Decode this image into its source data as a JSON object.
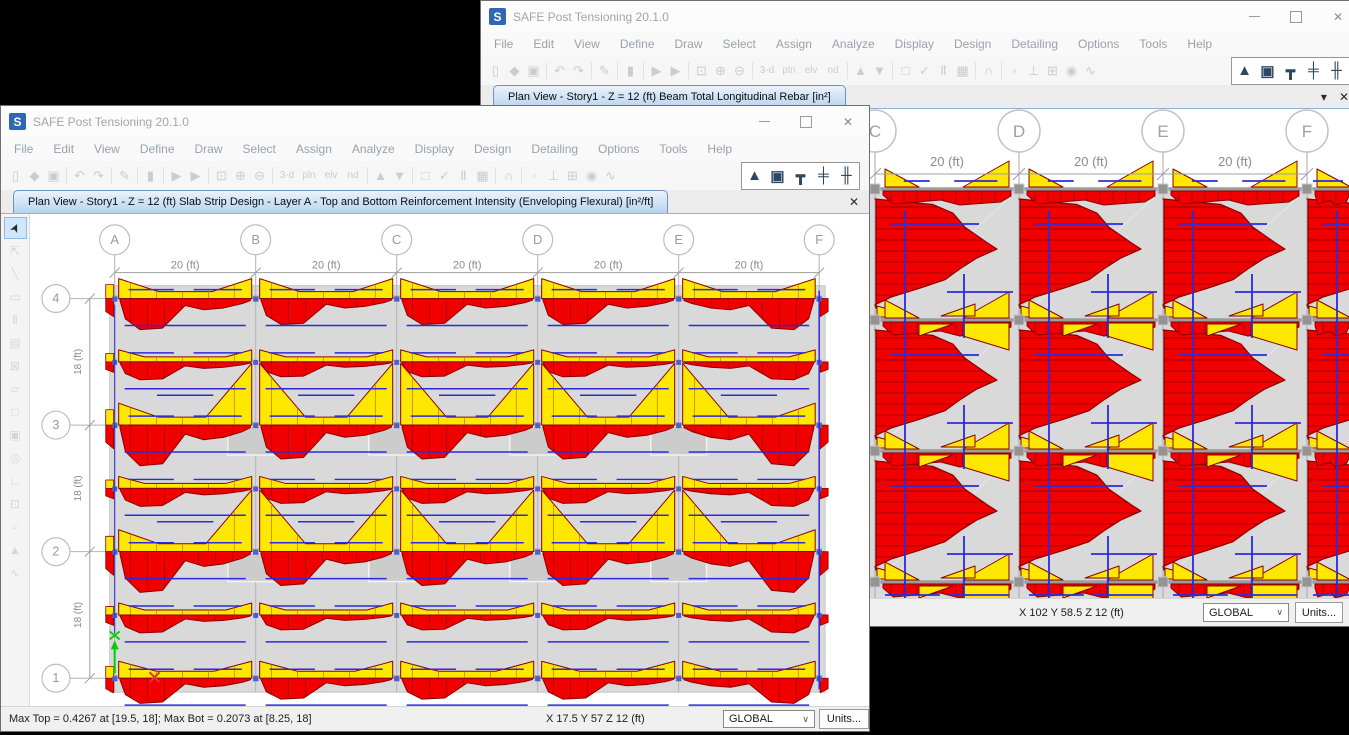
{
  "app": {
    "title": "SAFE Post Tensioning 20.1.0",
    "logo_letter": "S",
    "menu": [
      "File",
      "Edit",
      "View",
      "Define",
      "Draw",
      "Select",
      "Assign",
      "Analyze",
      "Display",
      "Design",
      "Detailing",
      "Options",
      "Tools",
      "Help"
    ],
    "toolbar_sequence": [
      "new-file",
      "open-model",
      "save-model",
      "|",
      "undo",
      "redo",
      "|",
      "draw-mode",
      "|",
      "lock-model",
      "|",
      "run-analysis",
      "run-design",
      "|",
      "zoom-window",
      "zoom-in",
      "zoom-out",
      "|",
      "view-3d",
      "view-plan",
      "view-elevation",
      "view-named",
      "|",
      "move-up-level",
      "move-down-level",
      "|",
      "rect-select",
      "snap-options",
      "frame-display",
      "slab-display",
      "|",
      "section-cut",
      "|",
      "point-assign",
      "support-assign",
      "mesh-options",
      "display-options",
      "deformed-shape"
    ],
    "toolbar_glyphs": {
      "new-file": {
        "g": "▯"
      },
      "open-model": {
        "g": "◆"
      },
      "save-model": {
        "g": "▣"
      },
      "undo": {
        "g": "↶"
      },
      "redo": {
        "g": "↷"
      },
      "draw-mode": {
        "g": "✎"
      },
      "lock-model": {
        "g": "▮"
      },
      "run-analysis": {
        "g": "▶"
      },
      "run-design": {
        "g": "▶"
      },
      "zoom-window": {
        "g": "⊡"
      },
      "zoom-in": {
        "g": "⊕"
      },
      "zoom-out": {
        "g": "⊖"
      },
      "view-3d": {
        "g": "3-d",
        "text": true
      },
      "view-plan": {
        "g": "pln",
        "text": true
      },
      "view-elevation": {
        "g": "elv",
        "text": true
      },
      "view-named": {
        "g": "nd",
        "text": true
      },
      "move-up-level": {
        "g": "▲"
      },
      "move-down-level": {
        "g": "▼"
      },
      "rect-select": {
        "g": "□"
      },
      "snap-options": {
        "g": "✓"
      },
      "frame-display": {
        "g": "Ⅱ"
      },
      "slab-display": {
        "g": "▦"
      },
      "section-cut": {
        "g": "∩"
      },
      "point-assign": {
        "g": "◦"
      },
      "support-assign": {
        "g": "⊥"
      },
      "mesh-options": {
        "g": "⊞"
      },
      "display-options": {
        "g": "◉"
      },
      "deformed-shape": {
        "g": "∿"
      }
    },
    "active_tools": [
      {
        "name": "design-display-beam",
        "glyph": "▲"
      },
      {
        "name": "design-display-slab",
        "glyph": "▣"
      },
      {
        "name": "design-display-punching",
        "glyph": "┳"
      },
      {
        "name": "design-display-strip",
        "glyph": "╪"
      },
      {
        "name": "design-display-dimension",
        "glyph": "╫"
      }
    ],
    "side_tools": [
      {
        "name": "select-pointer",
        "glyph": "➤",
        "selected": true
      },
      {
        "name": "reshape-object",
        "glyph": "⇱"
      },
      {
        "name": "draw-line",
        "glyph": "╲"
      },
      {
        "name": "draw-frame",
        "glyph": "▭"
      },
      {
        "name": "quick-draw-frame",
        "glyph": "Ⅱ"
      },
      {
        "name": "draw-area",
        "glyph": "▤"
      },
      {
        "name": "draw-rect-area",
        "glyph": "⊠"
      },
      {
        "name": "quick-draw-area",
        "glyph": "▱"
      },
      {
        "name": "draw-poly-area",
        "glyph": "□"
      },
      {
        "name": "draw-point-area",
        "glyph": "▣"
      },
      {
        "name": "draw-circle",
        "glyph": "◎"
      },
      {
        "name": "draw-corner",
        "glyph": "∟"
      },
      {
        "name": "draw-point",
        "glyph": "⊡"
      },
      {
        "name": "draw-null-point",
        "glyph": "▫"
      },
      {
        "name": "draw-cone",
        "glyph": "▲"
      },
      {
        "name": "draw-tendon",
        "glyph": "∿"
      }
    ],
    "window_controls": {
      "minimize": "minimize",
      "maximize": "maximize",
      "close": "close"
    }
  },
  "back_window": {
    "tab_label": "Plan View - Story1 - Z = 12 (ft)  Beam Total Longitudinal Rebar  [in²]",
    "tab_menu_glyph": "▾",
    "tab_close_glyph": "✕",
    "status": {
      "coords": "X 102  Y 58.5  Z 12 (ft)",
      "csys": "GLOBAL",
      "units": "Units..."
    },
    "plan": {
      "columns": [
        "C",
        "D",
        "E",
        "F"
      ],
      "span_label": "20 (ft)"
    }
  },
  "front_window": {
    "tab_label": "Plan View - Story1 - Z = 12 (ft)  Slab Strip Design - Layer A - Top and Bottom Reinforcement Intensity (Enveloping Flexural) [in²/ft]",
    "tab_close_glyph": "✕",
    "status": {
      "results": "Max Top = 0.4267 at [19.5, 18];  Max Bot = 0.2073 at [8.25, 18]",
      "coords": "X 17.5  Y 57  Z 12 (ft)",
      "csys": "GLOBAL",
      "units": "Units..."
    },
    "plan": {
      "columns": [
        "A",
        "B",
        "C",
        "D",
        "E",
        "F"
      ],
      "rows": [
        "4",
        "3",
        "2",
        "1"
      ],
      "span_label": "20 (ft)",
      "bay_label": "18 (ft)"
    }
  },
  "colors": {
    "rebar_bottom_red": "#f10000",
    "rebar_top_yellow": "#ffe800",
    "rebar_outline": "#8b0000",
    "tendon_blue": "#2b2bdd",
    "slab_gray": "#d9d9d9",
    "drop_panel_gray": "#cccccc",
    "grid_gray": "#b2b2b2",
    "axis_green": "#00cf00",
    "cursor_red": "#e23333"
  }
}
